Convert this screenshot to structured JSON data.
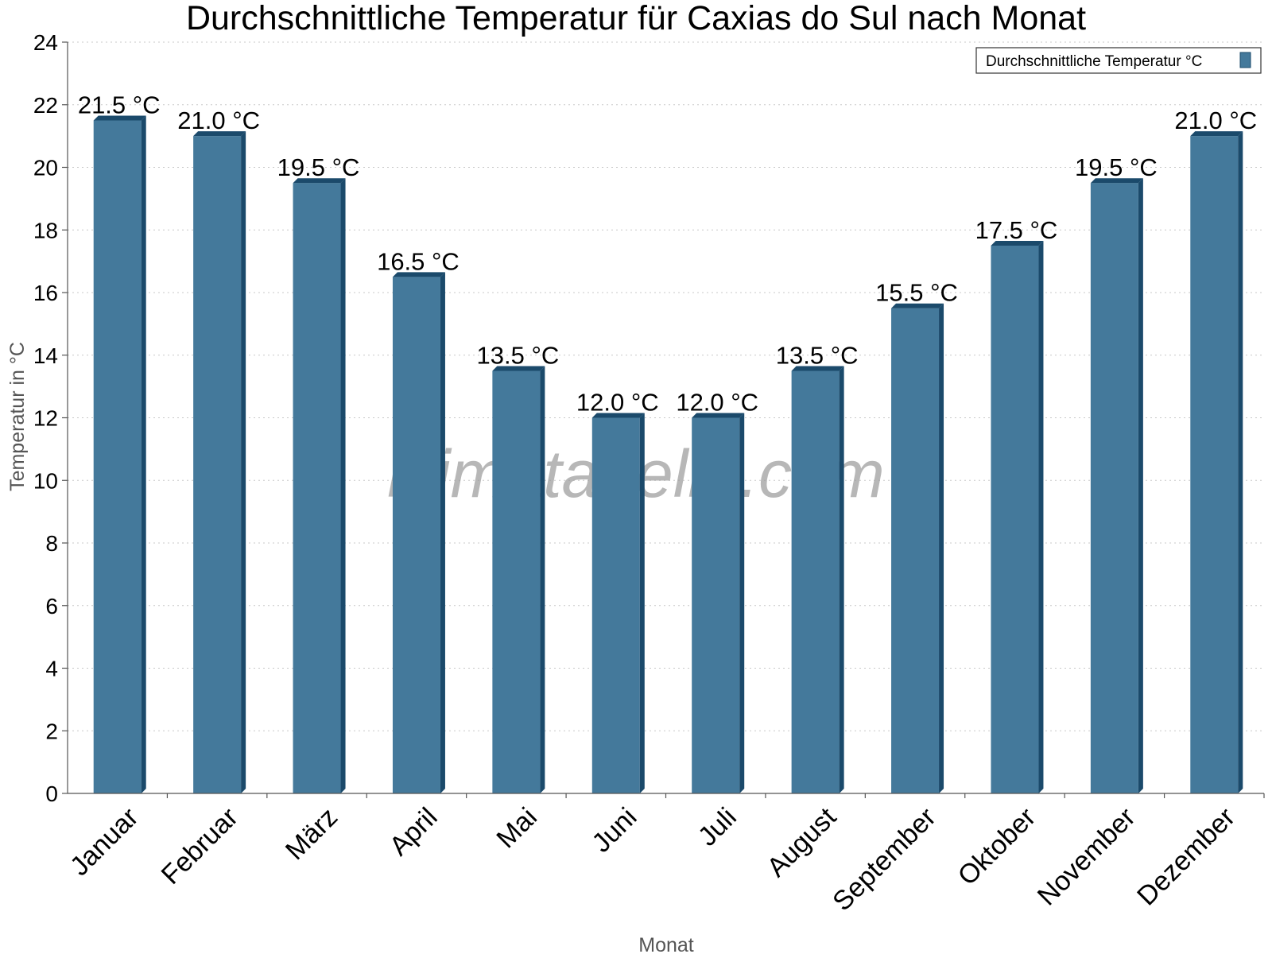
{
  "watermark": "klimatabelle.com",
  "colors": {
    "bar": "#44799b",
    "bar_side": "#1b4a6b",
    "bar_top": "#1b4a6b"
  },
  "chart_data": {
    "type": "bar",
    "title": "Durchschnittliche Temperatur für Caxias do Sul nach Monat",
    "xlabel": "Monat",
    "ylabel": "Temperatur in °C",
    "ylim": [
      0,
      24
    ],
    "yticks": [
      0,
      2,
      4,
      6,
      8,
      10,
      12,
      14,
      16,
      18,
      20,
      22,
      24
    ],
    "grid": true,
    "legend_position": "top-right",
    "categories": [
      "Januar",
      "Februar",
      "März",
      "April",
      "Mai",
      "Juni",
      "Juli",
      "August",
      "September",
      "Oktober",
      "November",
      "Dezember"
    ],
    "series": [
      {
        "name": "Durchschnittliche Temperatur °C",
        "values": [
          21.5,
          21.0,
          19.5,
          16.5,
          13.5,
          12.0,
          12.0,
          13.5,
          15.5,
          17.5,
          19.5,
          21.0
        ],
        "labels": [
          "21.5 °C",
          "21.0 °C",
          "19.5 °C",
          "16.5 °C",
          "13.5 °C",
          "12.0 °C",
          "12.0 °C",
          "13.5 °C",
          "15.5 °C",
          "17.5 °C",
          "19.5 °C",
          "21.0 °C"
        ]
      }
    ]
  }
}
